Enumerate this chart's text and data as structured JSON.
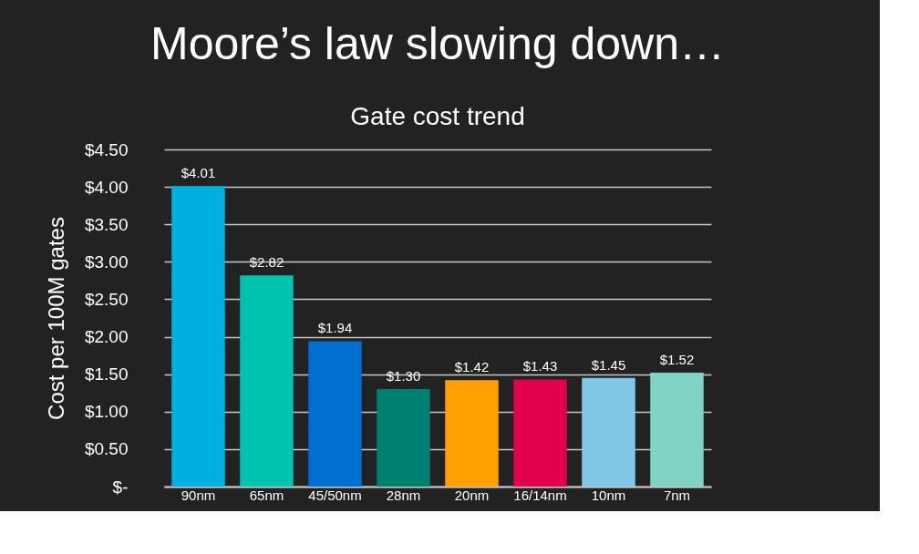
{
  "chart_data": {
    "type": "bar",
    "title": "Moore’s law slowing down…",
    "subtitle": "Gate cost trend",
    "ylabel": "Cost per 100M gates",
    "categories": [
      "90nm",
      "65nm",
      "45/50nm",
      "28nm",
      "20nm",
      "16/14nm",
      "10nm",
      "7nm"
    ],
    "values": [
      4.01,
      2.82,
      1.94,
      1.3,
      1.42,
      1.43,
      1.45,
      1.52
    ],
    "colors": [
      "#00b0e0",
      "#00c4b0",
      "#0070d0",
      "#008070",
      "#ffa000",
      "#e0004c",
      "#80c8e8",
      "#80d4c4"
    ],
    "value_labels": [
      "$4.01",
      "$2.82",
      "$1.94",
      "$1.30",
      "$1.42",
      "$1.43",
      "$1.45",
      "$1.52"
    ],
    "ylim": [
      0,
      4.5
    ],
    "yticks": [
      {
        "value": 0,
        "label": "$-"
      },
      {
        "value": 0.5,
        "label": "$0.50"
      },
      {
        "value": 1,
        "label": "$1.00"
      },
      {
        "value": 1.5,
        "label": "$1.50"
      },
      {
        "value": 2,
        "label": "$2.00"
      },
      {
        "value": 2.5,
        "label": "$2.50"
      },
      {
        "value": 3,
        "label": "$3.00"
      },
      {
        "value": 3.5,
        "label": "$3.50"
      },
      {
        "value": 4,
        "label": "$4.00"
      },
      {
        "value": 4.5,
        "label": "$4.50"
      }
    ],
    "grid": "y"
  }
}
